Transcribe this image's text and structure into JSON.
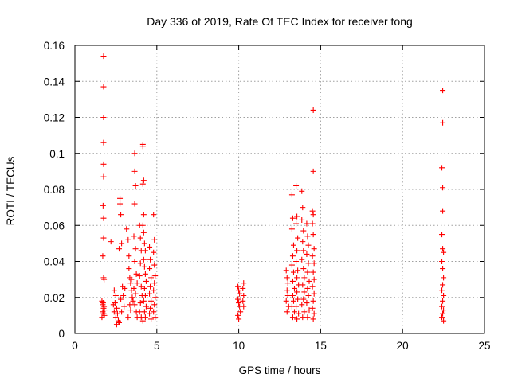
{
  "chart_data": {
    "type": "scatter",
    "title": "Day 336 of 2019, Rate Of TEC Index for receiver tong",
    "xlabel": "GPS time / hours",
    "ylabel": "ROTI / TECUs",
    "xlim": [
      0,
      25
    ],
    "ylim": [
      0,
      0.16
    ],
    "xticks": [
      0,
      5,
      10,
      15,
      20,
      25
    ],
    "xtick_labels": [
      "0",
      "5",
      "10",
      "15",
      "20",
      "25"
    ],
    "yticks": [
      0,
      0.02,
      0.04,
      0.06,
      0.08,
      0.1,
      0.12,
      0.14,
      0.16
    ],
    "ytick_labels": [
      "0",
      "0.02",
      "0.04",
      "0.06",
      "0.08",
      "0.1",
      "0.12",
      "0.14",
      "0.16"
    ],
    "grid": true,
    "marker": "+",
    "color": "#ff0000",
    "series": [
      {
        "name": "ROTI",
        "points": [
          [
            1.75,
            0.154
          ],
          [
            1.75,
            0.137
          ],
          [
            1.75,
            0.12
          ],
          [
            1.75,
            0.106
          ],
          [
            1.75,
            0.094
          ],
          [
            1.75,
            0.087
          ],
          [
            1.72,
            0.071
          ],
          [
            1.75,
            0.064
          ],
          [
            1.75,
            0.053
          ],
          [
            1.7,
            0.043
          ],
          [
            1.75,
            0.031
          ],
          [
            1.78,
            0.03
          ],
          [
            1.65,
            0.018
          ],
          [
            1.7,
            0.016
          ],
          [
            1.75,
            0.014
          ],
          [
            1.8,
            0.013
          ],
          [
            1.7,
            0.012
          ],
          [
            1.75,
            0.011
          ],
          [
            1.8,
            0.01
          ],
          [
            1.65,
            0.009
          ],
          [
            1.72,
            0.017
          ],
          [
            1.78,
            0.015
          ],
          [
            2.2,
            0.051
          ],
          [
            2.4,
            0.024
          ],
          [
            2.5,
            0.021
          ],
          [
            2.45,
            0.017
          ],
          [
            2.55,
            0.014
          ],
          [
            2.6,
            0.011
          ],
          [
            2.5,
            0.009
          ],
          [
            2.65,
            0.007
          ],
          [
            2.55,
            0.005
          ],
          [
            2.7,
            0.006
          ],
          [
            2.4,
            0.012
          ],
          [
            2.35,
            0.016
          ],
          [
            2.75,
            0.075
          ],
          [
            2.75,
            0.072
          ],
          [
            2.8,
            0.066
          ],
          [
            2.85,
            0.05
          ],
          [
            2.7,
            0.047
          ],
          [
            2.9,
            0.026
          ],
          [
            2.95,
            0.021
          ],
          [
            3.0,
            0.015
          ],
          [
            2.85,
            0.012
          ],
          [
            3.05,
            0.025
          ],
          [
            2.8,
            0.019
          ],
          [
            3.15,
            0.058
          ],
          [
            3.25,
            0.052
          ],
          [
            3.3,
            0.043
          ],
          [
            3.3,
            0.036
          ],
          [
            3.35,
            0.031
          ],
          [
            3.4,
            0.028
          ],
          [
            3.45,
            0.024
          ],
          [
            3.5,
            0.02
          ],
          [
            3.35,
            0.016
          ],
          [
            3.4,
            0.013
          ],
          [
            3.25,
            0.009
          ],
          [
            3.55,
            0.018
          ],
          [
            3.45,
            0.03
          ],
          [
            3.65,
            0.1
          ],
          [
            3.65,
            0.09
          ],
          [
            3.7,
            0.082
          ],
          [
            3.65,
            0.072
          ],
          [
            3.6,
            0.054
          ],
          [
            3.7,
            0.047
          ],
          [
            3.65,
            0.04
          ],
          [
            3.75,
            0.033
          ],
          [
            3.8,
            0.028
          ],
          [
            3.7,
            0.022
          ],
          [
            3.65,
            0.016
          ],
          [
            3.75,
            0.012
          ],
          [
            3.8,
            0.009
          ],
          [
            3.6,
            0.025
          ],
          [
            3.95,
            0.06
          ],
          [
            4.0,
            0.053
          ],
          [
            4.05,
            0.046
          ],
          [
            4.0,
            0.039
          ],
          [
            3.95,
            0.032
          ],
          [
            4.05,
            0.026
          ],
          [
            4.1,
            0.021
          ],
          [
            4.0,
            0.017
          ],
          [
            3.95,
            0.012
          ],
          [
            4.05,
            0.009
          ],
          [
            4.15,
            0.105
          ],
          [
            4.15,
            0.104
          ],
          [
            4.2,
            0.085
          ],
          [
            4.15,
            0.083
          ],
          [
            4.2,
            0.066
          ],
          [
            4.15,
            0.06
          ],
          [
            4.2,
            0.056
          ],
          [
            4.25,
            0.05
          ],
          [
            4.3,
            0.046
          ],
          [
            4.2,
            0.041
          ],
          [
            4.25,
            0.037
          ],
          [
            4.3,
            0.033
          ],
          [
            4.35,
            0.029
          ],
          [
            4.25,
            0.025
          ],
          [
            4.3,
            0.021
          ],
          [
            4.2,
            0.018
          ],
          [
            4.35,
            0.015
          ],
          [
            4.25,
            0.012
          ],
          [
            4.3,
            0.009
          ],
          [
            4.15,
            0.007
          ],
          [
            4.55,
            0.048
          ],
          [
            4.6,
            0.041
          ],
          [
            4.55,
            0.036
          ],
          [
            4.65,
            0.031
          ],
          [
            4.6,
            0.026
          ],
          [
            4.55,
            0.022
          ],
          [
            4.65,
            0.018
          ],
          [
            4.6,
            0.014
          ],
          [
            4.55,
            0.011
          ],
          [
            4.65,
            0.008
          ],
          [
            4.8,
            0.066
          ],
          [
            4.85,
            0.052
          ],
          [
            4.8,
            0.045
          ],
          [
            4.85,
            0.038
          ],
          [
            4.9,
            0.032
          ],
          [
            4.85,
            0.028
          ],
          [
            4.8,
            0.024
          ],
          [
            4.9,
            0.02
          ],
          [
            4.85,
            0.016
          ],
          [
            4.8,
            0.012
          ],
          [
            4.9,
            0.009
          ],
          [
            9.95,
            0.026
          ],
          [
            10.0,
            0.024
          ],
          [
            10.05,
            0.022
          ],
          [
            9.95,
            0.019
          ],
          [
            10.0,
            0.017
          ],
          [
            10.05,
            0.015
          ],
          [
            10.1,
            0.012
          ],
          [
            9.95,
            0.01
          ],
          [
            10.0,
            0.008
          ],
          [
            10.3,
            0.028
          ],
          [
            10.25,
            0.025
          ],
          [
            10.3,
            0.021
          ],
          [
            10.25,
            0.018
          ],
          [
            10.3,
            0.015
          ],
          [
            12.9,
            0.035
          ],
          [
            12.95,
            0.031
          ],
          [
            13.0,
            0.028
          ],
          [
            12.95,
            0.024
          ],
          [
            13.0,
            0.021
          ],
          [
            12.9,
            0.018
          ],
          [
            13.05,
            0.015
          ],
          [
            12.95,
            0.012
          ],
          [
            13.25,
            0.077
          ],
          [
            13.3,
            0.064
          ],
          [
            13.25,
            0.058
          ],
          [
            13.35,
            0.049
          ],
          [
            13.3,
            0.043
          ],
          [
            13.25,
            0.038
          ],
          [
            13.35,
            0.034
          ],
          [
            13.3,
            0.029
          ],
          [
            13.4,
            0.025
          ],
          [
            13.3,
            0.021
          ],
          [
            13.35,
            0.018
          ],
          [
            13.25,
            0.015
          ],
          [
            13.4,
            0.012
          ],
          [
            13.3,
            0.009
          ],
          [
            13.5,
            0.082
          ],
          [
            13.55,
            0.065
          ],
          [
            13.5,
            0.061
          ],
          [
            13.6,
            0.053
          ],
          [
            13.55,
            0.046
          ],
          [
            13.5,
            0.04
          ],
          [
            13.6,
            0.035
          ],
          [
            13.55,
            0.031
          ],
          [
            13.65,
            0.027
          ],
          [
            13.55,
            0.023
          ],
          [
            13.6,
            0.019
          ],
          [
            13.5,
            0.015
          ],
          [
            13.65,
            0.011
          ],
          [
            13.55,
            0.008
          ],
          [
            13.85,
            0.079
          ],
          [
            13.9,
            0.07
          ],
          [
            13.85,
            0.063
          ],
          [
            13.95,
            0.057
          ],
          [
            13.9,
            0.051
          ],
          [
            13.95,
            0.046
          ],
          [
            13.85,
            0.041
          ],
          [
            13.95,
            0.036
          ],
          [
            14.0,
            0.031
          ],
          [
            13.9,
            0.027
          ],
          [
            14.0,
            0.023
          ],
          [
            13.95,
            0.019
          ],
          [
            13.85,
            0.016
          ],
          [
            14.0,
            0.012
          ],
          [
            13.9,
            0.009
          ],
          [
            14.15,
            0.061
          ],
          [
            14.2,
            0.054
          ],
          [
            14.25,
            0.049
          ],
          [
            14.15,
            0.044
          ],
          [
            14.25,
            0.039
          ],
          [
            14.2,
            0.034
          ],
          [
            14.3,
            0.029
          ],
          [
            14.2,
            0.025
          ],
          [
            14.25,
            0.021
          ],
          [
            14.15,
            0.017
          ],
          [
            14.3,
            0.013
          ],
          [
            14.2,
            0.009
          ],
          [
            14.55,
            0.124
          ],
          [
            14.55,
            0.09
          ],
          [
            14.5,
            0.068
          ],
          [
            14.55,
            0.066
          ],
          [
            14.5,
            0.061
          ],
          [
            14.55,
            0.055
          ],
          [
            14.6,
            0.047
          ],
          [
            14.5,
            0.043
          ],
          [
            14.6,
            0.039
          ],
          [
            14.55,
            0.034
          ],
          [
            14.6,
            0.03
          ],
          [
            14.5,
            0.026
          ],
          [
            14.6,
            0.022
          ],
          [
            14.55,
            0.018
          ],
          [
            14.5,
            0.014
          ],
          [
            14.6,
            0.011
          ],
          [
            14.55,
            0.008
          ],
          [
            22.45,
            0.135
          ],
          [
            22.45,
            0.117
          ],
          [
            22.4,
            0.092
          ],
          [
            22.45,
            0.081
          ],
          [
            22.45,
            0.068
          ],
          [
            22.4,
            0.055
          ],
          [
            22.45,
            0.047
          ],
          [
            22.5,
            0.045
          ],
          [
            22.4,
            0.04
          ],
          [
            22.45,
            0.036
          ],
          [
            22.5,
            0.031
          ],
          [
            22.45,
            0.027
          ],
          [
            22.4,
            0.024
          ],
          [
            22.5,
            0.021
          ],
          [
            22.45,
            0.018
          ],
          [
            22.4,
            0.015
          ],
          [
            22.5,
            0.013
          ],
          [
            22.45,
            0.011
          ],
          [
            22.4,
            0.009
          ],
          [
            22.5,
            0.007
          ]
        ]
      }
    ]
  }
}
